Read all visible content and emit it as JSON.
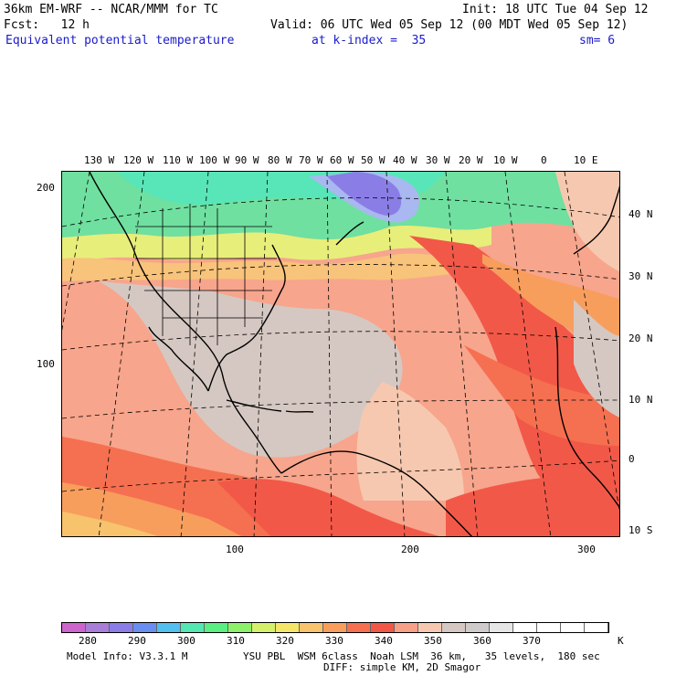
{
  "header": {
    "model_line": "36km EM-WRF -- NCAR/MMM for TC",
    "init_line": "Init: 18 UTC Tue 04 Sep 12",
    "fcst_line": "Fcst:   12 h",
    "valid_line": "Valid: 06 UTC Wed 05 Sep 12 (00 MDT Wed 05 Sep 12)",
    "field_name": "Equivalent potential temperature",
    "level_text": "at k-index =  35",
    "smooth_text": "sm= 6"
  },
  "map": {
    "top_longitudes": [
      "130 W",
      "120 W",
      "110 W",
      "100 W",
      "90 W",
      "80 W",
      "70 W",
      "60 W",
      "50 W",
      "40 W",
      "30 W",
      "20 W",
      "10 W",
      "0",
      "10 E"
    ],
    "right_latitudes": [
      "40 N",
      "30 N",
      "20 N",
      "10 N",
      "0",
      "10 S"
    ],
    "left_grid_labels": [
      "200",
      "100"
    ],
    "bottom_grid_labels": [
      "100",
      "200",
      "300"
    ]
  },
  "colorbar": {
    "colors": [
      "#cc66cc",
      "#a87ed6",
      "#8a7ee6",
      "#6a8ef0",
      "#52bfee",
      "#55e6b2",
      "#59ef83",
      "#8cf06a",
      "#d5f06a",
      "#f5e66a",
      "#f7c36d",
      "#f89e5d",
      "#f57050",
      "#f25848",
      "#f6a088",
      "#f6c8b0",
      "#d5c8c2",
      "#cfcbca",
      "#e6e6e6",
      "#ffffff",
      "#ffffff",
      "#ffffff",
      "#ffffff"
    ],
    "tick_labels": [
      "280",
      "290",
      "300",
      "310",
      "320",
      "330",
      "340",
      "350",
      "360",
      "370"
    ],
    "unit": "K"
  },
  "footer": {
    "model_info": "Model Info: V3.3.1 M",
    "physics": "YSU PBL  WSM 6class  Noah LSM  36 km,   35 levels,  180 sec",
    "diffusion": "DIFF: simple KM, 2D Smagor"
  }
}
